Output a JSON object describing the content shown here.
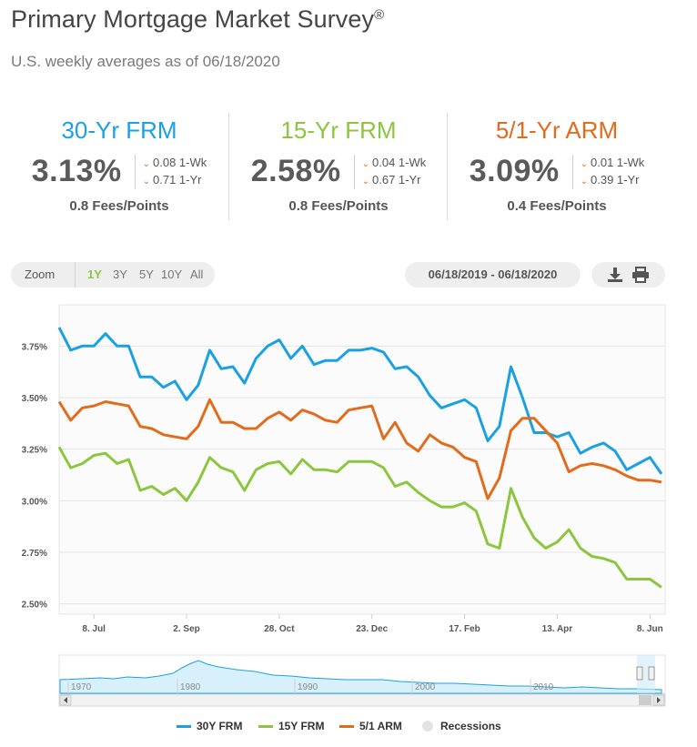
{
  "header": {
    "title": "Primary Mortgage Market Survey",
    "registered": "®",
    "subtitle": "U.S. weekly averages as of 06/18/2020"
  },
  "rates": [
    {
      "name": "30-Yr FRM",
      "color": "#1ba1e2",
      "value": "3.13%",
      "wk_change": "0.08 1-Wk",
      "yr_change": "0.71 1-Yr",
      "fees": "0.8 Fees/Points"
    },
    {
      "name": "15-Yr FRM",
      "color": "#8cc63f",
      "value": "2.58%",
      "wk_change": "0.04 1-Wk",
      "yr_change": "0.67 1-Yr",
      "fees": "0.8 Fees/Points"
    },
    {
      "name": "5/1-Yr ARM",
      "color": "#e06c1c",
      "value": "3.09%",
      "wk_change": "0.01 1-Wk",
      "yr_change": "0.39 1-Yr",
      "fees": "0.4 Fees/Points"
    }
  ],
  "controls": {
    "zoom_label": "Zoom",
    "zoom_options": [
      "1Y",
      "3Y",
      "5Y",
      "10Y",
      "All"
    ],
    "active_zoom": "1Y",
    "date_range": "06/18/2019 - 06/18/2020",
    "download_icon": "download-icon",
    "print_icon": "print-icon"
  },
  "chart_data": {
    "type": "line",
    "ylim": [
      2.45,
      3.95
    ],
    "y_ticks": [
      "3.75%",
      "3.50%",
      "3.25%",
      "3.00%",
      "2.75%",
      "2.50%"
    ],
    "y_tick_values": [
      3.75,
      3.5,
      3.25,
      3.0,
      2.75,
      2.5
    ],
    "x_ticks": [
      "8. Jul",
      "2. Sep",
      "28. Oct",
      "23. Dec",
      "17. Feb",
      "13. Apr",
      "8. Jun"
    ],
    "x_tick_index": [
      3,
      11,
      19,
      27,
      35,
      43,
      51
    ],
    "x": [
      "2019-06-20",
      "2019-06-27",
      "2019-07-03",
      "2019-07-11",
      "2019-07-18",
      "2019-07-25",
      "2019-08-01",
      "2019-08-08",
      "2019-08-15",
      "2019-08-22",
      "2019-08-29",
      "2019-09-05",
      "2019-09-12",
      "2019-09-19",
      "2019-09-26",
      "2019-10-03",
      "2019-10-10",
      "2019-10-17",
      "2019-10-24",
      "2019-10-31",
      "2019-11-07",
      "2019-11-14",
      "2019-11-21",
      "2019-11-27",
      "2019-12-05",
      "2019-12-12",
      "2019-12-19",
      "2019-12-26",
      "2020-01-02",
      "2020-01-09",
      "2020-01-16",
      "2020-01-23",
      "2020-01-30",
      "2020-02-06",
      "2020-02-13",
      "2020-02-20",
      "2020-02-27",
      "2020-03-05",
      "2020-03-12",
      "2020-03-19",
      "2020-03-26",
      "2020-04-02",
      "2020-04-09",
      "2020-04-16",
      "2020-04-23",
      "2020-04-30",
      "2020-05-07",
      "2020-05-14",
      "2020-05-21",
      "2020-05-28",
      "2020-06-04",
      "2020-06-11",
      "2020-06-18"
    ],
    "series": [
      {
        "name": "30Y FRM",
        "color": "#1ba1e2",
        "values": [
          3.84,
          3.73,
          3.75,
          3.75,
          3.81,
          3.75,
          3.75,
          3.6,
          3.6,
          3.55,
          3.58,
          3.49,
          3.56,
          3.73,
          3.64,
          3.65,
          3.57,
          3.69,
          3.75,
          3.78,
          3.69,
          3.75,
          3.66,
          3.68,
          3.68,
          3.73,
          3.73,
          3.74,
          3.72,
          3.64,
          3.65,
          3.6,
          3.51,
          3.45,
          3.47,
          3.49,
          3.45,
          3.29,
          3.36,
          3.65,
          3.5,
          3.33,
          3.33,
          3.31,
          3.33,
          3.23,
          3.26,
          3.28,
          3.24,
          3.15,
          3.18,
          3.21,
          3.13
        ]
      },
      {
        "name": "15Y FRM",
        "color": "#8cc63f",
        "values": [
          3.26,
          3.16,
          3.18,
          3.22,
          3.23,
          3.18,
          3.2,
          3.05,
          3.07,
          3.03,
          3.06,
          3.0,
          3.09,
          3.21,
          3.16,
          3.14,
          3.05,
          3.15,
          3.18,
          3.19,
          3.13,
          3.2,
          3.15,
          3.15,
          3.14,
          3.19,
          3.19,
          3.19,
          3.16,
          3.07,
          3.09,
          3.04,
          3.0,
          2.97,
          2.97,
          2.99,
          2.95,
          2.79,
          2.77,
          3.06,
          2.92,
          2.82,
          2.77,
          2.8,
          2.86,
          2.77,
          2.73,
          2.72,
          2.7,
          2.62,
          2.62,
          2.62,
          2.58
        ]
      },
      {
        "name": "5/1 ARM",
        "color": "#e06c1c",
        "values": [
          3.48,
          3.39,
          3.45,
          3.46,
          3.48,
          3.47,
          3.46,
          3.36,
          3.35,
          3.32,
          3.31,
          3.3,
          3.36,
          3.49,
          3.38,
          3.38,
          3.35,
          3.35,
          3.4,
          3.43,
          3.39,
          3.44,
          3.42,
          3.39,
          3.38,
          3.44,
          3.45,
          3.46,
          3.3,
          3.38,
          3.28,
          3.24,
          3.32,
          3.28,
          3.26,
          3.21,
          3.19,
          3.01,
          3.11,
          3.34,
          3.4,
          3.4,
          3.34,
          3.28,
          3.14,
          3.17,
          3.18,
          3.17,
          3.15,
          3.12,
          3.1,
          3.1,
          3.09
        ]
      }
    ],
    "navigator": {
      "x_ticks": [
        "1970",
        "1980",
        "1990",
        "2000",
        "2010"
      ],
      "recessions_label": "Recessions"
    },
    "grid": true,
    "legend_position": "bottom"
  }
}
